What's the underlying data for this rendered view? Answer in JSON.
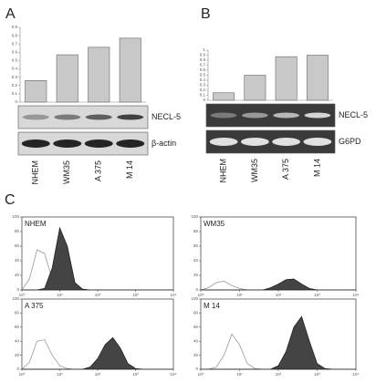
{
  "chart_data": [
    {
      "type": "bar",
      "panel": "A",
      "categories": [
        "NHEM",
        "WM35",
        "A 375",
        "M 14"
      ],
      "values": [
        0.26,
        0.57,
        0.66,
        0.77
      ],
      "color": "#c8c8c8",
      "ylim": [
        0,
        0.9
      ],
      "yticks": [
        0,
        0.1,
        0.2,
        0.3,
        0.4,
        0.5,
        0.6,
        0.7,
        0.8,
        0.9
      ],
      "blot_labels": [
        "NECL-5",
        "β-actin"
      ],
      "blot_style": "light"
    },
    {
      "type": "bar",
      "panel": "B",
      "categories": [
        "NHEM",
        "WM35",
        "A 375",
        "M 14"
      ],
      "values": [
        0.15,
        0.5,
        0.87,
        0.9
      ],
      "color": "#c8c8c8",
      "ylim": [
        0,
        1
      ],
      "yticks": [
        0,
        0.1,
        0.2,
        0.3,
        0.4,
        0.5,
        0.6,
        0.7,
        0.8,
        0.9,
        1
      ],
      "blot_labels": [
        "NECL-5",
        "G6PD"
      ],
      "blot_style": "gel"
    },
    {
      "type": "histogram-overlay",
      "panel": "C",
      "title": "NHEM",
      "log_x": true,
      "x": [
        1,
        1.58,
        2.51,
        3.98,
        6.31,
        10,
        15.8,
        25.1,
        39.8,
        63.1,
        100,
        158,
        251,
        398,
        631,
        1000,
        1585,
        2512,
        3981,
        6310,
        10000
      ],
      "xlim": [
        1,
        10000
      ],
      "xticks": [
        {
          "value": 1,
          "label": "10⁰"
        },
        {
          "value": 10,
          "label": "10¹"
        },
        {
          "value": 100,
          "label": "10²"
        },
        {
          "value": 1000,
          "label": "10³"
        },
        {
          "value": 10000,
          "label": "10⁴"
        }
      ],
      "ylim": [
        0,
        100
      ],
      "yticks": [
        0,
        20,
        40,
        60,
        80,
        100
      ],
      "series": [
        {
          "color": "#999999",
          "fill": "none",
          "values": [
            0,
            15,
            55,
            50,
            15,
            4,
            1,
            0,
            0,
            0,
            0,
            0,
            0,
            0,
            0,
            0,
            0,
            0,
            0,
            0,
            0
          ]
        },
        {
          "color": "#222222",
          "fill": "#444444",
          "values": [
            0,
            0,
            0,
            2,
            30,
            85,
            60,
            10,
            1,
            0,
            0,
            0,
            0,
            0,
            0,
            0,
            0,
            0,
            0,
            0,
            0
          ]
        }
      ]
    },
    {
      "type": "histogram-overlay",
      "title": "WM35",
      "log_x": true,
      "x": [
        1,
        1.58,
        2.51,
        3.98,
        6.31,
        10,
        15.8,
        25.1,
        39.8,
        63.1,
        100,
        158,
        251,
        398,
        631,
        1000,
        1585,
        2512,
        3981,
        6310,
        10000
      ],
      "xlim": [
        1,
        10000
      ],
      "xticks": [
        {
          "value": 1,
          "label": "10⁰"
        },
        {
          "value": 10,
          "label": "10¹"
        },
        {
          "value": 100,
          "label": "10²"
        },
        {
          "value": 1000,
          "label": "10³"
        },
        {
          "value": 10000,
          "label": "10⁴"
        }
      ],
      "ylim": [
        0,
        100
      ],
      "yticks": [
        0,
        20,
        40,
        60,
        80,
        100
      ],
      "series": [
        {
          "color": "#999999",
          "fill": "none",
          "values": [
            0,
            3,
            10,
            12,
            6,
            2,
            0,
            0,
            0,
            0,
            0,
            0,
            0,
            0,
            0,
            0,
            0,
            0,
            0,
            0,
            0
          ]
        },
        {
          "color": "#222222",
          "fill": "#444444",
          "values": [
            0,
            0,
            0,
            0,
            0,
            0,
            0,
            0,
            0,
            3,
            8,
            14,
            15,
            8,
            2,
            0,
            0,
            0,
            0,
            0,
            0
          ]
        }
      ]
    },
    {
      "type": "histogram-overlay",
      "title": "A 375",
      "log_x": true,
      "x": [
        1,
        1.58,
        2.51,
        3.98,
        6.31,
        10,
        15.8,
        25.1,
        39.8,
        63.1,
        100,
        158,
        251,
        398,
        631,
        1000,
        1585,
        2512,
        3981,
        6310,
        10000
      ],
      "xlim": [
        1,
        10000
      ],
      "xticks": [
        {
          "value": 1,
          "label": "10⁰"
        },
        {
          "value": 10,
          "label": "10¹"
        },
        {
          "value": 100,
          "label": "10²"
        },
        {
          "value": 1000,
          "label": "10³"
        },
        {
          "value": 10000,
          "label": "10⁴"
        }
      ],
      "ylim": [
        0,
        100
      ],
      "yticks": [
        0,
        20,
        40,
        60,
        80,
        100
      ],
      "series": [
        {
          "color": "#999999",
          "fill": "none",
          "values": [
            0,
            10,
            40,
            42,
            20,
            5,
            1,
            0,
            0,
            0,
            0,
            0,
            0,
            0,
            0,
            0,
            0,
            0,
            0,
            0,
            0
          ]
        },
        {
          "color": "#222222",
          "fill": "#444444",
          "values": [
            0,
            0,
            0,
            0,
            0,
            0,
            0,
            0,
            0,
            3,
            15,
            35,
            45,
            30,
            8,
            1,
            0,
            0,
            0,
            0,
            0
          ]
        }
      ]
    },
    {
      "type": "histogram-overlay",
      "title": "M 14",
      "log_x": true,
      "x": [
        1,
        1.58,
        2.51,
        3.98,
        6.31,
        10,
        15.8,
        25.1,
        39.8,
        63.1,
        100,
        158,
        251,
        398,
        631,
        1000,
        1585,
        2512,
        3981,
        6310,
        10000
      ],
      "xlim": [
        1,
        10000
      ],
      "xticks": [
        {
          "value": 1,
          "label": "10⁰"
        },
        {
          "value": 10,
          "label": "10¹"
        },
        {
          "value": 100,
          "label": "10²"
        },
        {
          "value": 1000,
          "label": "10³"
        },
        {
          "value": 10000,
          "label": "10⁴"
        }
      ],
      "ylim": [
        0,
        100
      ],
      "yticks": [
        0,
        20,
        40,
        60,
        80,
        100
      ],
      "series": [
        {
          "color": "#999999",
          "fill": "none",
          "values": [
            0,
            0,
            3,
            20,
            50,
            35,
            8,
            1,
            0,
            0,
            0,
            0,
            0,
            0,
            0,
            0,
            0,
            0,
            0,
            0,
            0
          ]
        },
        {
          "color": "#222222",
          "fill": "#444444",
          "values": [
            0,
            0,
            0,
            0,
            0,
            0,
            0,
            0,
            0,
            0,
            5,
            25,
            60,
            75,
            40,
            8,
            1,
            0,
            0,
            0,
            0
          ]
        }
      ]
    }
  ]
}
